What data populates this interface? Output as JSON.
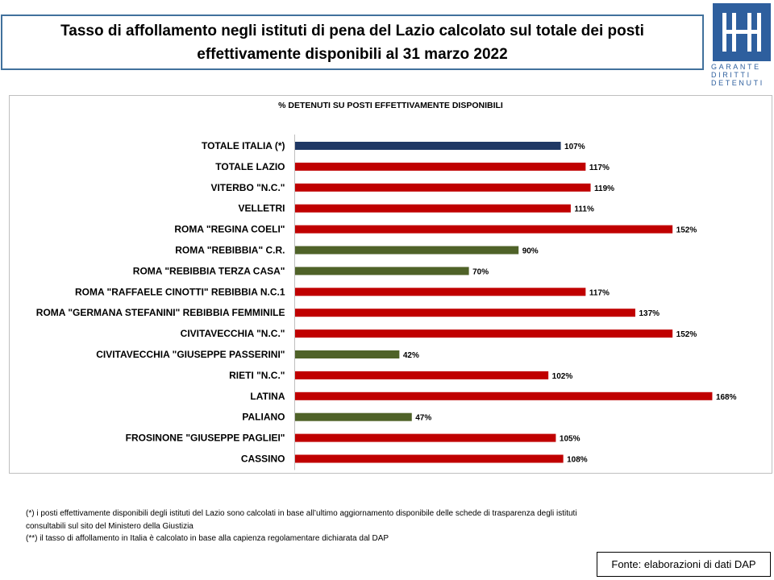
{
  "header": {
    "title_line1": "Tasso di affollamento negli istituti di pena del Lazio calcolato sul totale dei posti",
    "title_line2": "effettivamente disponibili al 31 marzo 2022"
  },
  "logo": {
    "text_line1": "GARANTE",
    "text_line2": "DIRITTI",
    "text_line3": "DETENUTI",
    "color": "#2e5f9e"
  },
  "chart_data": {
    "type": "bar",
    "orientation": "horizontal",
    "title": "% DETENUTI SU POSTI EFFETTIVAMENTE DISPONIBILI",
    "xlim": [
      0,
      170
    ],
    "grid": false,
    "categories": [
      "TOTALE ITALIA (*)",
      "TOTALE LAZIO",
      "VITERBO \"N.C.\"",
      "VELLETRI",
      "ROMA \"REGINA COELI\"",
      "ROMA \"REBIBBIA\" C.R.",
      "ROMA \"REBIBBIA TERZA CASA\"",
      "ROMA \"RAFFAELE CINOTTI\" REBIBBIA N.C.1",
      "ROMA \"GERMANA STEFANINI\" REBIBBIA FEMMINILE",
      "CIVITAVECCHIA \"N.C.\"",
      "CIVITAVECCHIA \"GIUSEPPE PASSERINI\"",
      "RIETI \"N.C.\"",
      "LATINA",
      "PALIANO",
      "FROSINONE \"GIUSEPPE PAGLIEI\"",
      "CASSINO"
    ],
    "values": [
      107,
      117,
      119,
      111,
      152,
      90,
      70,
      117,
      137,
      152,
      42,
      102,
      168,
      47,
      105,
      108
    ],
    "labels": [
      "107%",
      "117%",
      "119%",
      "111%",
      "152%",
      "90%",
      "70%",
      "117%",
      "137%",
      "152%",
      "42%",
      "102%",
      "168%",
      "47%",
      "105%",
      "108%"
    ],
    "colors": [
      "#1f3864",
      "#c00000",
      "#c00000",
      "#c00000",
      "#c00000",
      "#4f6228",
      "#4f6228",
      "#c00000",
      "#c00000",
      "#c00000",
      "#4f6228",
      "#c00000",
      "#c00000",
      "#4f6228",
      "#c00000",
      "#c00000"
    ]
  },
  "footnotes": {
    "line1": "(*) i posti effettivamente disponibili  degli istituti del Lazio sono  calcolati in base all’ultimo aggiornamento disponibile  delle schede  di trasparenza degli istituti",
    "line2": "consultabili sul sito del Ministero della Giustizia",
    "line3": "(**) il tasso di affollamento  in Italia è calcolato in base alla capienza regolamentare dichiarata dal DAP"
  },
  "source": "Fonte: elaborazioni di dati DAP"
}
